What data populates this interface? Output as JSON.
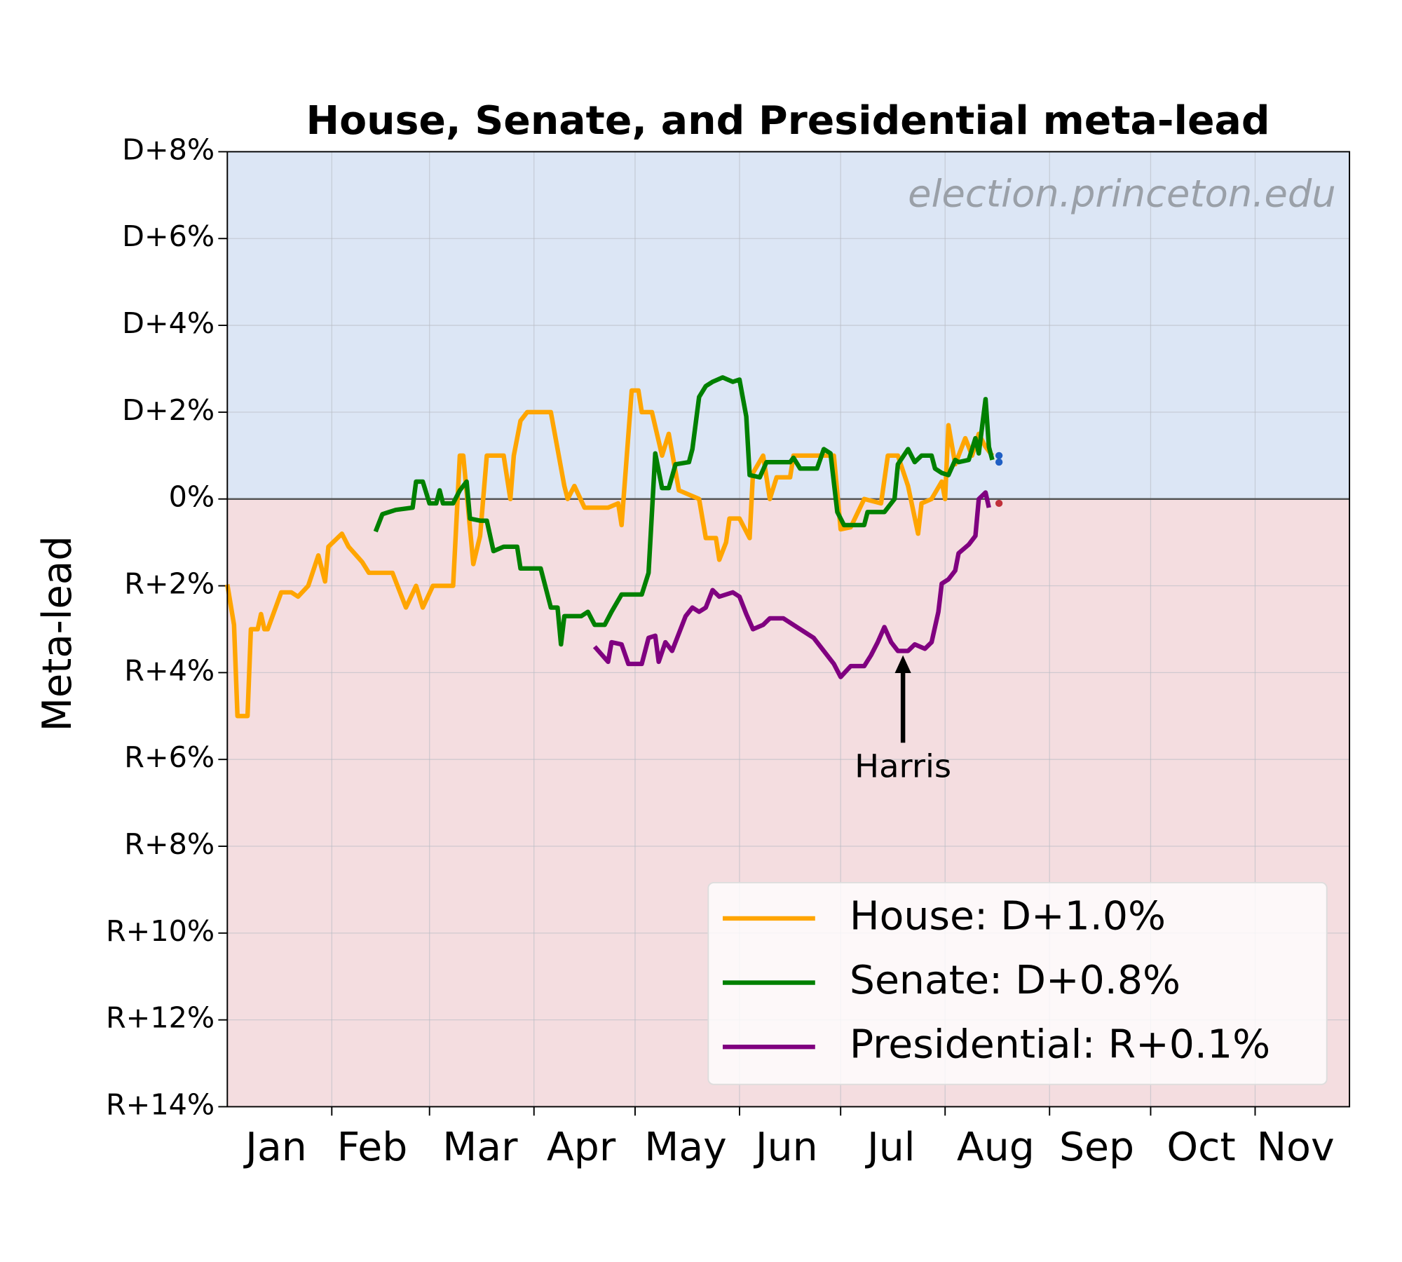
{
  "chart_data": {
    "type": "line",
    "title": "House, Senate, and Presidential meta-lead",
    "y_label": "Meta-lead",
    "watermark": "election.princeton.edu",
    "xlim": [
      0,
      333
    ],
    "xticks": [
      31,
      60,
      91,
      121,
      152,
      182,
      213,
      244,
      274,
      305
    ],
    "month_labels": [
      {
        "value": 14.5,
        "label": "Jan"
      },
      {
        "value": 43,
        "label": "Feb"
      },
      {
        "value": 75,
        "label": "Mar"
      },
      {
        "value": 105,
        "label": "Apr"
      },
      {
        "value": 136,
        "label": "May"
      },
      {
        "value": 166,
        "label": "Jun"
      },
      {
        "value": 197,
        "label": "Jul"
      },
      {
        "value": 228,
        "label": "Aug"
      },
      {
        "value": 258,
        "label": "Sep"
      },
      {
        "value": 289,
        "label": "Oct"
      },
      {
        "value": 317,
        "label": "Nov"
      }
    ],
    "ylim": [
      -14,
      8
    ],
    "yticks": [
      {
        "value": -14,
        "label": "R+14%"
      },
      {
        "value": -12,
        "label": "R+12%"
      },
      {
        "value": -10,
        "label": "R+10%"
      },
      {
        "value": -8,
        "label": "R+8%"
      },
      {
        "value": -6,
        "label": "R+6%"
      },
      {
        "value": -4,
        "label": "R+4%"
      },
      {
        "value": -2,
        "label": "R+2%"
      },
      {
        "value": 0,
        "label": "0%"
      },
      {
        "value": 2,
        "label": "D+2%"
      },
      {
        "value": 4,
        "label": "D+4%"
      },
      {
        "value": 6,
        "label": "D+6%"
      },
      {
        "value": 8,
        "label": "D+8%"
      }
    ],
    "grid": true,
    "positive_color": "#dce6f5",
    "negative_color": "#f4dde0",
    "legend": "lower right",
    "annotation": {
      "text": "Harris",
      "x": 200.5,
      "value": -3.6
    },
    "series": [
      {
        "name": "House: D+1.0%",
        "color": "#ffa500",
        "x": [
          0,
          2,
          3,
          6,
          7,
          9,
          10,
          11,
          12,
          16,
          19,
          21,
          24,
          27,
          29,
          30,
          34,
          36,
          40,
          42,
          49,
          53,
          56,
          58,
          61,
          67,
          69,
          70,
          73,
          75,
          77,
          82,
          84,
          85,
          87,
          89,
          96,
          100,
          101,
          103,
          106,
          113,
          116,
          117,
          120,
          122,
          123,
          126,
          129,
          131,
          134,
          140,
          142,
          145,
          146,
          148,
          149,
          152,
          155,
          156,
          159,
          161,
          163,
          167,
          168,
          180,
          182,
          185,
          189,
          194,
          196,
          199,
          202,
          205,
          206,
          209,
          212,
          213,
          214,
          216,
          219,
          221,
          223,
          225,
          227
        ],
        "values": [
          -1.97,
          -2.9,
          -5,
          -5,
          -3,
          -3,
          -2.65,
          -3,
          -3,
          -2.15,
          -2.15,
          -2.25,
          -2,
          -1.3,
          -1.9,
          -1.1,
          -0.8,
          -1.1,
          -1.45,
          -1.7,
          -1.7,
          -2.5,
          -2,
          -2.5,
          -2,
          -2,
          1,
          1,
          -1.5,
          -0.85,
          1,
          1,
          0,
          1,
          1.8,
          2,
          2,
          0.3,
          0,
          0.3,
          -0.2,
          -0.2,
          -0.1,
          -0.6,
          2.5,
          2.5,
          2,
          2,
          1,
          1.5,
          0.2,
          0,
          -0.9,
          -0.9,
          -1.4,
          -1,
          -0.45,
          -0.45,
          -0.9,
          0.6,
          1,
          0,
          0.5,
          0.5,
          1,
          1,
          -0.7,
          -0.65,
          0,
          -0.1,
          1,
          1,
          0.3,
          -0.8,
          -0.1,
          0,
          0.4,
          0,
          1.7,
          0.8,
          1.4,
          1,
          1.5,
          1.2,
          1.0
        ],
        "end_marker": {
          "x": 229,
          "value": 1.0,
          "color": "#1f5fc4"
        }
      },
      {
        "name": "Senate: D+0.8%",
        "color": "#008000",
        "x": [
          44,
          46,
          48,
          50,
          55,
          56,
          58,
          60,
          62,
          63,
          64,
          67,
          69,
          71,
          72,
          75,
          77,
          79,
          82,
          86,
          87,
          93,
          96,
          98,
          99,
          100,
          105,
          107,
          109,
          112,
          114,
          117,
          123,
          125,
          127,
          129,
          131,
          133,
          137,
          138,
          140,
          142,
          144,
          147,
          150,
          152,
          154,
          155,
          158,
          160,
          167,
          168,
          170,
          175,
          177,
          179,
          181,
          183,
          189,
          190,
          195,
          198,
          199,
          202,
          204,
          206,
          209,
          210,
          212,
          214,
          216,
          217,
          220,
          222,
          223,
          225,
          226,
          227
        ],
        "values": [
          -0.75,
          -0.35,
          -0.3,
          -0.25,
          -0.2,
          0.4,
          0.4,
          -0.1,
          -0.1,
          0.2,
          -0.1,
          -0.1,
          0.2,
          0.4,
          -0.45,
          -0.5,
          -0.5,
          -1.2,
          -1.1,
          -1.1,
          -1.6,
          -1.6,
          -2.5,
          -2.5,
          -3.35,
          -2.7,
          -2.7,
          -2.6,
          -2.9,
          -2.9,
          -2.6,
          -2.2,
          -2.2,
          -1.7,
          1.05,
          0.25,
          0.25,
          0.8,
          0.85,
          1.15,
          2.35,
          2.6,
          2.7,
          2.8,
          2.7,
          2.75,
          1.9,
          0.55,
          0.5,
          0.85,
          0.85,
          0.95,
          0.7,
          0.7,
          1.15,
          1.05,
          -0.3,
          -0.6,
          -0.6,
          -0.3,
          -0.3,
          0,
          0.8,
          1.15,
          0.85,
          1,
          1,
          0.7,
          0.6,
          0.55,
          0.9,
          0.85,
          0.9,
          1.4,
          1.05,
          2.3,
          1.2,
          0.9
        ],
        "end_marker": {
          "x": 229,
          "value": 0.85,
          "color": "#1f5fc4"
        }
      },
      {
        "name": "Presidential: R+0.1%",
        "color": "#800080",
        "x": [
          109,
          113,
          114,
          117,
          119,
          123,
          125,
          127,
          128,
          130,
          132,
          136,
          138,
          140,
          142,
          144,
          146,
          150,
          152,
          154,
          156,
          159,
          161,
          165,
          167,
          170,
          174,
          177,
          180,
          182,
          185,
          189,
          191,
          193,
          195,
          197,
          199,
          202,
          204,
          207,
          209,
          211,
          212,
          214,
          216,
          217,
          220,
          222,
          223,
          225,
          226
        ],
        "values": [
          -3.4,
          -3.75,
          -3.3,
          -3.35,
          -3.8,
          -3.8,
          -3.2,
          -3.15,
          -3.75,
          -3.3,
          -3.5,
          -2.7,
          -2.5,
          -2.6,
          -2.5,
          -2.1,
          -2.25,
          -2.15,
          -2.25,
          -2.65,
          -3.0,
          -2.9,
          -2.75,
          -2.75,
          -2.85,
          -3.0,
          -3.2,
          -3.5,
          -3.8,
          -4.1,
          -3.85,
          -3.85,
          -3.6,
          -3.3,
          -2.95,
          -3.3,
          -3.5,
          -3.5,
          -3.35,
          -3.45,
          -3.3,
          -2.6,
          -1.95,
          -1.85,
          -1.65,
          -1.25,
          -1.05,
          -0.85,
          0,
          0.15,
          -0.2
        ],
        "end_marker": {
          "x": 229,
          "value": -0.1,
          "color": "#c0303a"
        }
      }
    ]
  }
}
